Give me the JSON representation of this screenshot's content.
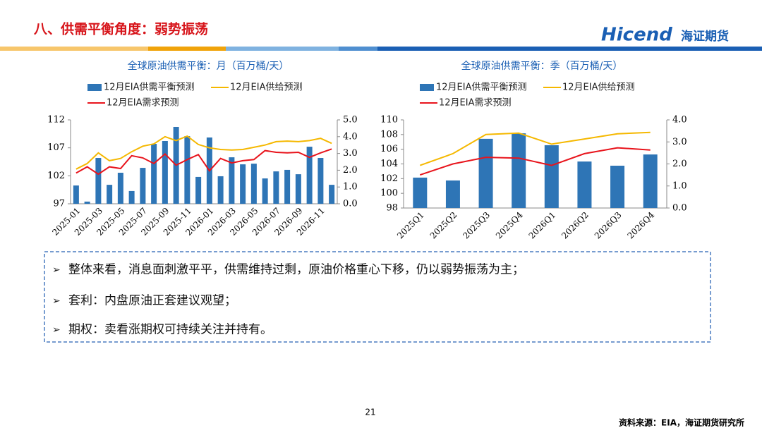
{
  "header": {
    "title": "八、供需平衡角度：弱势振荡",
    "logo": "Hicend",
    "logo_cn": "海证期货"
  },
  "chart_data": [
    {
      "type": "bar",
      "title": "全球原油供需平衡：月（百万桶/天）",
      "categories": [
        "2025-01",
        null,
        "2025-03",
        null,
        "2025-05",
        null,
        "2025-07",
        null,
        "2025-09",
        null,
        "2025-11",
        null,
        "2026-01",
        null,
        "2026-03",
        null,
        "2026-05",
        null,
        "2026-07",
        null,
        "2026-09",
        null,
        "2026-11",
        null
      ],
      "series": [
        {
          "name": "12月EIA供需平衡预测",
          "type": "bar",
          "axis": "y2",
          "color": "#2e75b6",
          "values": [
            1.09,
            0.13,
            2.73,
            1.13,
            1.85,
            0.76,
            2.14,
            3.57,
            3.74,
            4.58,
            4.03,
            1.6,
            3.95,
            1.64,
            2.77,
            2.35,
            2.39,
            1.51,
            1.93,
            2.02,
            1.76,
            3.4,
            2.73,
            1.13
          ]
        },
        {
          "name": "12月EIA供给预测",
          "type": "line",
          "color": "#f5b800",
          "values": [
            103.2,
            104.2,
            106.1,
            104.7,
            105.1,
            106.3,
            107.3,
            107.7,
            109.0,
            108.3,
            109.1,
            107.6,
            107.0,
            106.7,
            106.6,
            106.7,
            107.1,
            107.5,
            108.1,
            108.2,
            108.1,
            108.3,
            108.7,
            107.8
          ]
        },
        {
          "name": "12月EIA需求预测",
          "type": "line",
          "color": "#e8141c",
          "values": [
            102.5,
            103.6,
            102.3,
            103.6,
            103.3,
            105.6,
            105.2,
            104.2,
            105.9,
            103.9,
            104.9,
            105.8,
            102.9,
            105.1,
            104.3,
            104.7,
            104.9,
            106.5,
            106.2,
            106.1,
            106.2,
            105.3,
            106.1,
            106.8
          ]
        }
      ],
      "ylim": [
        97,
        112
      ],
      "yticks": [
        97,
        102,
        107,
        112
      ],
      "y2lim": [
        0,
        5
      ],
      "y2ticks": [
        {
          "value": 0,
          "label": "0.0"
        },
        {
          "value": 1,
          "label": "1.0"
        },
        {
          "value": 2,
          "label": "2.0"
        },
        {
          "value": 3,
          "label": "3.0"
        },
        {
          "value": 4,
          "label": "4.0"
        },
        {
          "value": 5,
          "label": "5.0"
        }
      ]
    },
    {
      "type": "bar",
      "title": "全球原油供需平衡：季（百万桶/天）",
      "categories": [
        "2025Q1",
        "2025Q2",
        "2025Q3",
        "2025Q4",
        "2026Q1",
        "2026Q2",
        "2026Q3",
        "2026Q4"
      ],
      "series": [
        {
          "name": "12月EIA供需平衡预测",
          "type": "bar",
          "axis": "y2",
          "color": "#2e75b6",
          "values": [
            1.38,
            1.25,
            3.14,
            3.39,
            2.85,
            2.11,
            1.92,
            2.43
          ]
        },
        {
          "name": "12月EIA供给预测",
          "type": "line",
          "color": "#f5b800",
          "values": [
            103.8,
            105.4,
            108.0,
            108.2,
            106.7,
            107.4,
            108.1,
            108.3
          ]
        },
        {
          "name": "12月EIA需求预测",
          "type": "line",
          "color": "#e8141c",
          "values": [
            102.5,
            104.0,
            104.9,
            104.8,
            103.8,
            105.4,
            106.2,
            105.9
          ]
        }
      ],
      "ylim": [
        98,
        110
      ],
      "yticks": [
        98,
        100,
        102,
        104,
        106,
        108,
        110
      ],
      "y2lim": [
        0,
        4
      ],
      "y2ticks": [
        {
          "value": 0,
          "label": "0.0"
        },
        {
          "value": 1,
          "label": "1.0"
        },
        {
          "value": 2,
          "label": "2.0"
        },
        {
          "value": 3,
          "label": "3.0"
        },
        {
          "value": 4,
          "label": "4.0"
        }
      ]
    }
  ],
  "bullets": [
    "整体来看，消息面刺激平平，供需维持过剩，原油价格重心下移，仍以弱势振荡为主；",
    "套利：内盘原油正套建议观望；",
    "期权：卖看涨期权可持续关注并持有。"
  ],
  "footer": {
    "page": "21",
    "source": "资料来源：EIA，海证期货研究所"
  }
}
